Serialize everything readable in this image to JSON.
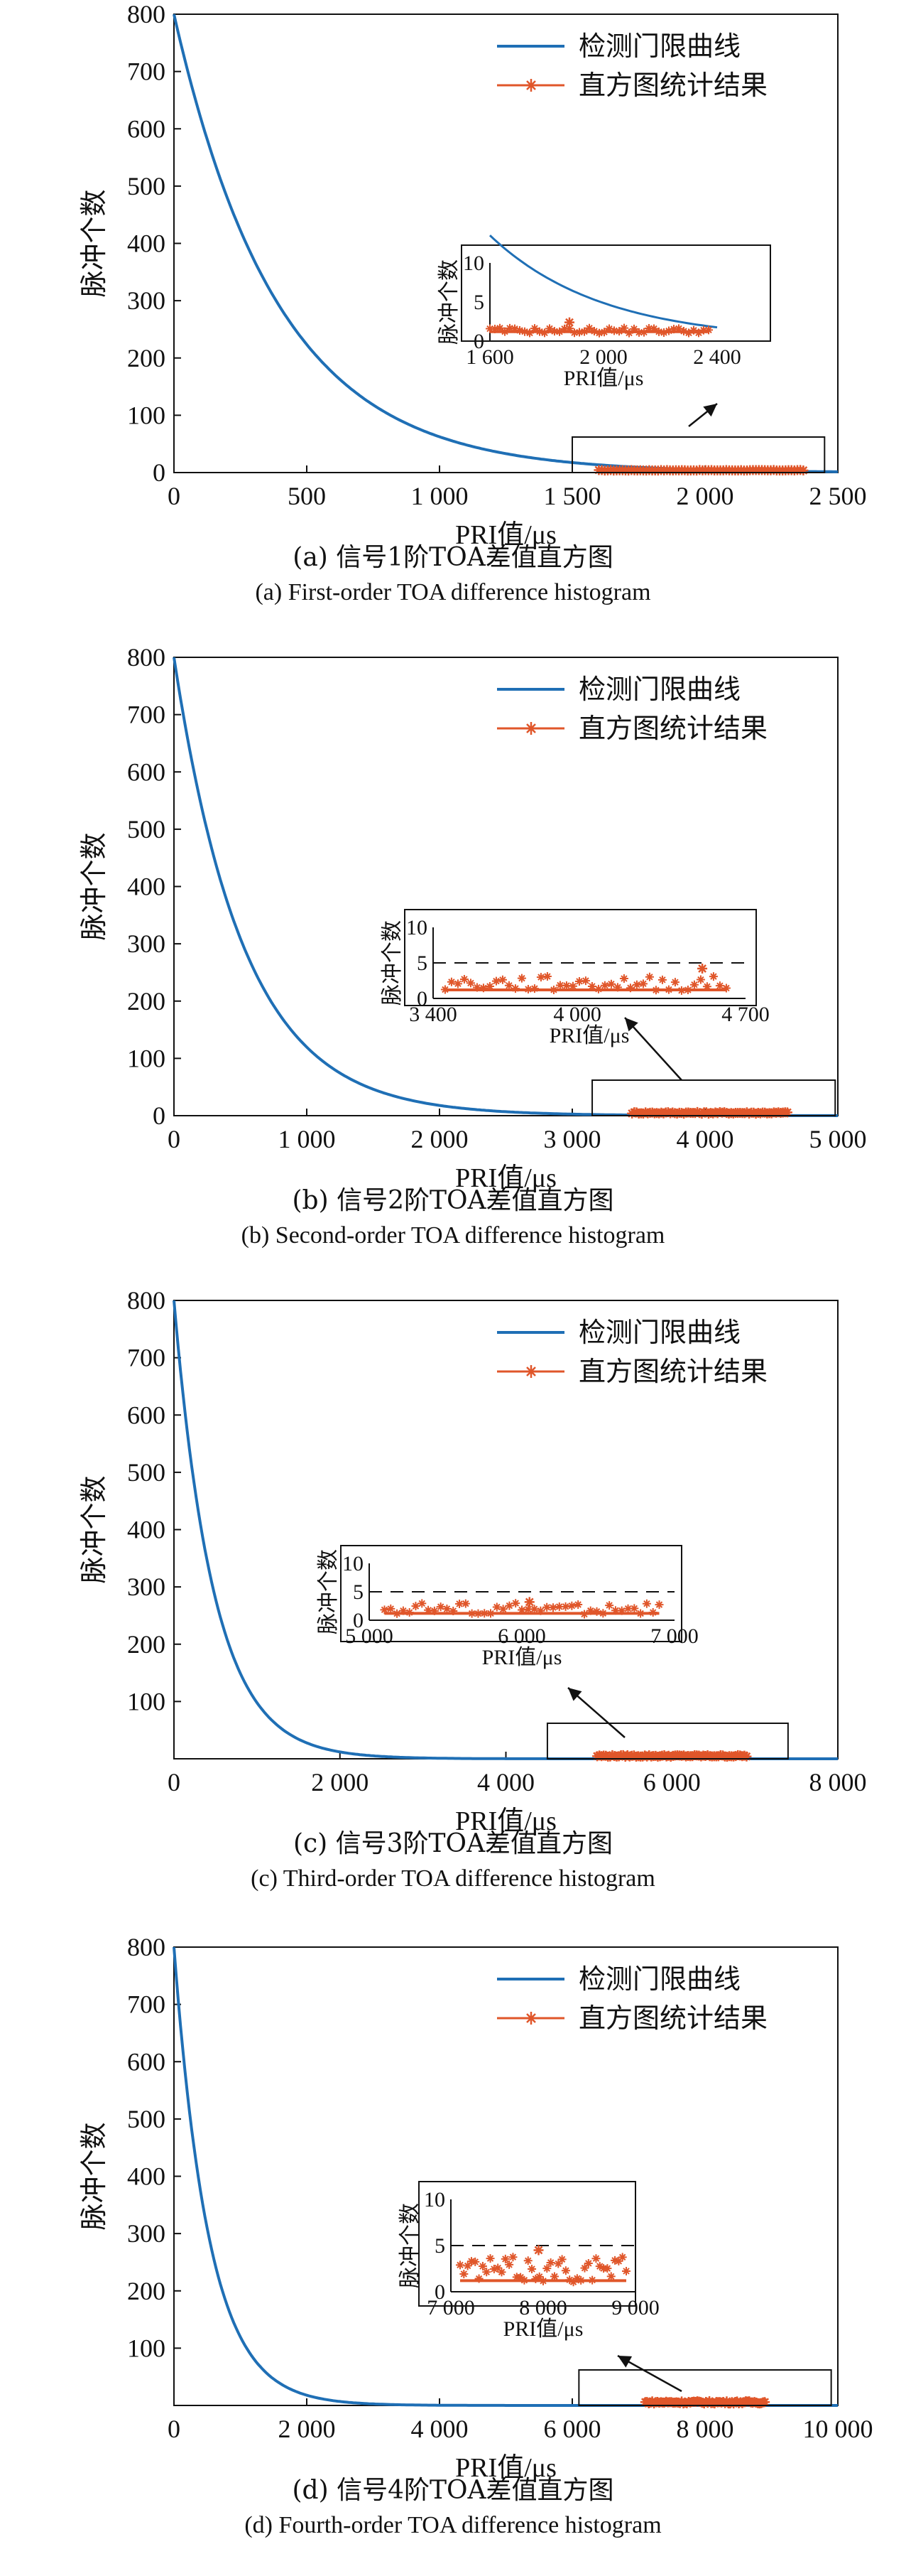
{
  "colors": {
    "threshold": "#1f6fb5",
    "histogram": "#e0562a",
    "axis": "#111111"
  },
  "chart_data": [
    {
      "type": "line",
      "panel_top": 0,
      "caption_cn": "(a) 信号1阶TOA差值直方图",
      "caption_en": "(a) First-order TOA difference histogram",
      "xlabel": "PRI值/μs",
      "ylabel": "脉冲个数",
      "xlim": [
        0,
        2500
      ],
      "ylim": [
        0,
        800
      ],
      "xticks": [
        0,
        500,
        1000,
        1500,
        2000,
        2500
      ],
      "xtick_labels": [
        "0",
        "500",
        "1 000",
        "1 500",
        "2 000",
        "2 500"
      ],
      "yticks": [
        0,
        100,
        200,
        300,
        400,
        500,
        600,
        700,
        800
      ],
      "ytick_labels": [
        "0",
        "100",
        "200",
        "300",
        "400",
        "500",
        "600",
        "700",
        "800"
      ],
      "legend": [
        "检测门限曲线",
        "直方图统计结果"
      ],
      "series": [
        {
          "name": "检测门限曲线",
          "kind": "threshold_curve",
          "y0": 800,
          "decay_per_us": 0.00255
        },
        {
          "name": "直方图统计结果",
          "kind": "histogram",
          "x_range": [
            1600,
            2370
          ],
          "count_range": [
            1,
            2
          ]
        }
      ],
      "highlight_box": {
        "x": [
          1500,
          2450
        ],
        "y": [
          0,
          62
        ]
      },
      "inset": {
        "xlim": [
          1600,
          2400
        ],
        "ylim": [
          0,
          10
        ],
        "xticks": [
          1600,
          2000,
          2400
        ],
        "xtick_labels": [
          "1 600",
          "2 000",
          "2 400"
        ],
        "yticks": [
          0,
          5,
          10
        ],
        "ytick_labels": [
          "0",
          "5",
          "10"
        ],
        "xlabel": "PRI值/μs",
        "ylabel": "脉冲个数",
        "show_threshold_curve": true,
        "dashed_line": null,
        "histogram_peak": {
          "x": 1880,
          "y": 2.4
        }
      }
    },
    {
      "type": "line",
      "panel_top": 905,
      "caption_cn": "(b) 信号2阶TOA差值直方图",
      "caption_en": "(b) Second-order TOA difference histogram",
      "xlabel": "PRI值/μs",
      "ylabel": "脉冲个数",
      "xlim": [
        0,
        5000
      ],
      "ylim": [
        0,
        800
      ],
      "xticks": [
        0,
        1000,
        2000,
        3000,
        4000,
        5000
      ],
      "xtick_labels": [
        "0",
        "1 000",
        "2 000",
        "3 000",
        "4 000",
        "5 000"
      ],
      "yticks": [
        0,
        100,
        200,
        300,
        400,
        500,
        600,
        700,
        800
      ],
      "ytick_labels": [
        "0",
        "100",
        "200",
        "300",
        "400",
        "500",
        "600",
        "700",
        "800"
      ],
      "legend": [
        "检测门限曲线",
        "直方图统计结果"
      ],
      "series": [
        {
          "name": "检测门限曲线",
          "kind": "threshold_curve",
          "y0": 800,
          "decay_per_us": 0.0019
        },
        {
          "name": "直方图统计结果",
          "kind": "histogram",
          "x_range": [
            3450,
            4620
          ],
          "count_range": [
            1,
            4
          ]
        }
      ],
      "highlight_box": {
        "x": [
          3150,
          4980
        ],
        "y": [
          0,
          62
        ]
      },
      "inset": {
        "xlim": [
          3400,
          4700
        ],
        "ylim": [
          0,
          10
        ],
        "xticks": [
          3400,
          4000,
          4700
        ],
        "xtick_labels": [
          "3 400",
          "4 000",
          "4 700"
        ],
        "yticks": [
          0,
          5,
          10
        ],
        "ytick_labels": [
          "0",
          "5",
          "10"
        ],
        "xlabel": "PRI值/μs",
        "ylabel": "脉冲个数",
        "show_threshold_curve": false,
        "dashed_line": 5,
        "histogram_peak": {
          "x": 4520,
          "y": 4.2
        }
      }
    },
    {
      "type": "line",
      "panel_top": 1810,
      "caption_cn": "(c) 信号3阶TOA差值直方图",
      "caption_en": "(c) Third-order TOA difference histogram",
      "xlabel": "PRI值/μs",
      "ylabel": "脉冲个数",
      "xlim": [
        0,
        8000
      ],
      "ylim": [
        0,
        800
      ],
      "xticks": [
        0,
        2000,
        4000,
        6000,
        8000
      ],
      "xtick_labels": [
        "0",
        "2 000",
        "4 000",
        "6 000",
        "8 000"
      ],
      "yticks": [
        100,
        200,
        300,
        400,
        500,
        600,
        700,
        800
      ],
      "ytick_labels": [
        "100",
        "200",
        "300",
        "400",
        "500",
        "600",
        "700",
        "800"
      ],
      "legend": [
        "检测门限曲线",
        "直方图统计结果"
      ],
      "series": [
        {
          "name": "检测门限曲线",
          "kind": "threshold_curve",
          "y0": 800,
          "decay_per_us": 0.0021
        },
        {
          "name": "直方图统计结果",
          "kind": "histogram",
          "x_range": [
            5100,
            6900
          ],
          "count_range": [
            1,
            4
          ]
        }
      ],
      "highlight_box": {
        "x": [
          4500,
          7400
        ],
        "y": [
          0,
          62
        ]
      },
      "inset": {
        "xlim": [
          5000,
          7000
        ],
        "ylim": [
          0,
          10
        ],
        "xticks": [
          5000,
          6000,
          7000
        ],
        "xtick_labels": [
          "5 000",
          "6 000",
          "7 000"
        ],
        "yticks": [
          0,
          5,
          10
        ],
        "ytick_labels": [
          "0",
          "5",
          "10"
        ],
        "xlabel": "PRI值/μs",
        "ylabel": "脉冲个数",
        "show_threshold_curve": false,
        "dashed_line": 5,
        "histogram_peak": {
          "x": 6050,
          "y": 3.2
        }
      }
    },
    {
      "type": "line",
      "panel_top": 2720,
      "caption_cn": "(d) 信号4阶TOA差值直方图",
      "caption_en": "(d) Fourth-order TOA difference histogram",
      "xlabel": "PRI值/μs",
      "ylabel": "脉冲个数",
      "xlim": [
        0,
        10000
      ],
      "ylim": [
        0,
        800
      ],
      "xticks": [
        0,
        2000,
        4000,
        6000,
        8000,
        10000
      ],
      "xtick_labels": [
        "0",
        "2 000",
        "4 000",
        "6 000",
        "8 000",
        "10 000"
      ],
      "yticks": [
        100,
        200,
        300,
        400,
        500,
        600,
        700,
        800
      ],
      "ytick_labels": [
        "100",
        "200",
        "300",
        "400",
        "500",
        "600",
        "700",
        "800"
      ],
      "legend": [
        "检测门限曲线",
        "直方图统计结果"
      ],
      "series": [
        {
          "name": "检测门限曲线",
          "kind": "threshold_curve",
          "y0": 800,
          "decay_per_us": 0.0019
        },
        {
          "name": "直方图统计结果",
          "kind": "histogram",
          "x_range": [
            7100,
            8900
          ],
          "count_range": [
            1,
            5
          ]
        }
      ],
      "highlight_box": {
        "x": [
          6100,
          9900
        ],
        "y": [
          0,
          62
        ]
      },
      "inset": {
        "xlim": [
          7000,
          9000
        ],
        "ylim": [
          0,
          10
        ],
        "xticks": [
          7000,
          8000,
          9000
        ],
        "xtick_labels": [
          "7 000",
          "8 000",
          "9 000"
        ],
        "yticks": [
          0,
          5,
          10
        ],
        "ytick_labels": [
          "0",
          "5",
          "10"
        ],
        "xlabel": "PRI值/μs",
        "ylabel": "脉冲个数",
        "show_threshold_curve": false,
        "dashed_line": 5,
        "histogram_peak": {
          "x": 7950,
          "y": 4.5
        }
      }
    }
  ]
}
